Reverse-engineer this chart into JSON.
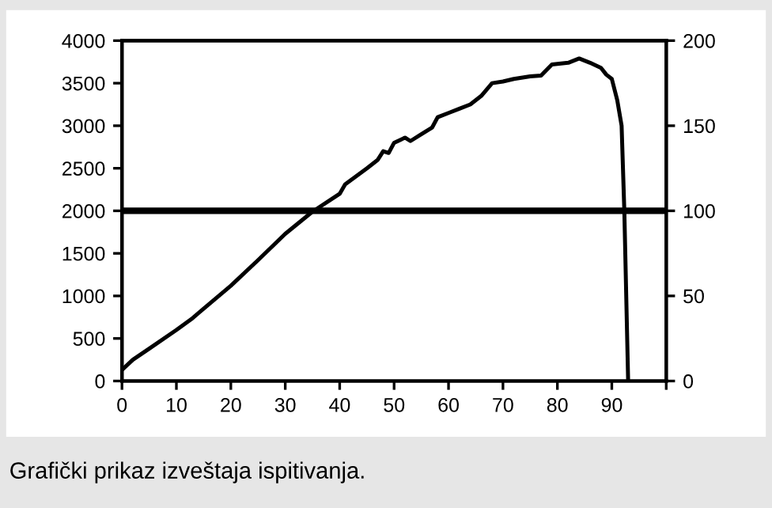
{
  "chart_data": {
    "type": "line",
    "annotations": [
      "Grafički prikaz izveštaja ispitivanja."
    ],
    "x": [
      0,
      2,
      5,
      10,
      13,
      15,
      20,
      25,
      30,
      35,
      40,
      41,
      45,
      47,
      48,
      49,
      50,
      52,
      53,
      55,
      57,
      58,
      60,
      62,
      64,
      66,
      68,
      70,
      72,
      75,
      77,
      79,
      82,
      84,
      86,
      88,
      89,
      90,
      91,
      91.8,
      92.3,
      93
    ],
    "series": [
      {
        "color": "#000000",
        "values": [
          130,
          250,
          380,
          600,
          740,
          850,
          1120,
          1420,
          1730,
          1990,
          2200,
          2310,
          2500,
          2600,
          2700,
          2680,
          2800,
          2860,
          2820,
          2900,
          2980,
          3100,
          3150,
          3200,
          3250,
          3350,
          3500,
          3520,
          3550,
          3580,
          3590,
          3720,
          3740,
          3790,
          3740,
          3680,
          3600,
          3550,
          3300,
          3000,
          2000,
          0
        ]
      }
    ],
    "xlim": [
      0,
      100
    ],
    "xticks": [
      0,
      10,
      20,
      30,
      40,
      50,
      60,
      70,
      80,
      90,
      {
        "value": 100,
        "label": null
      }
    ],
    "ylim": [
      0,
      4000
    ],
    "yticks": [
      0,
      500,
      1000,
      1500,
      2000,
      2500,
      3000,
      3500,
      4000
    ],
    "y2lim": [
      0,
      200
    ],
    "y2ticks": [
      0,
      50,
      100,
      150,
      200
    ],
    "ref_lines": [
      {
        "axis": "y",
        "value": 2000,
        "color": "#000000"
      }
    ],
    "grid": false,
    "legend": false,
    "marker": "none",
    "line_style": "solid"
  }
}
